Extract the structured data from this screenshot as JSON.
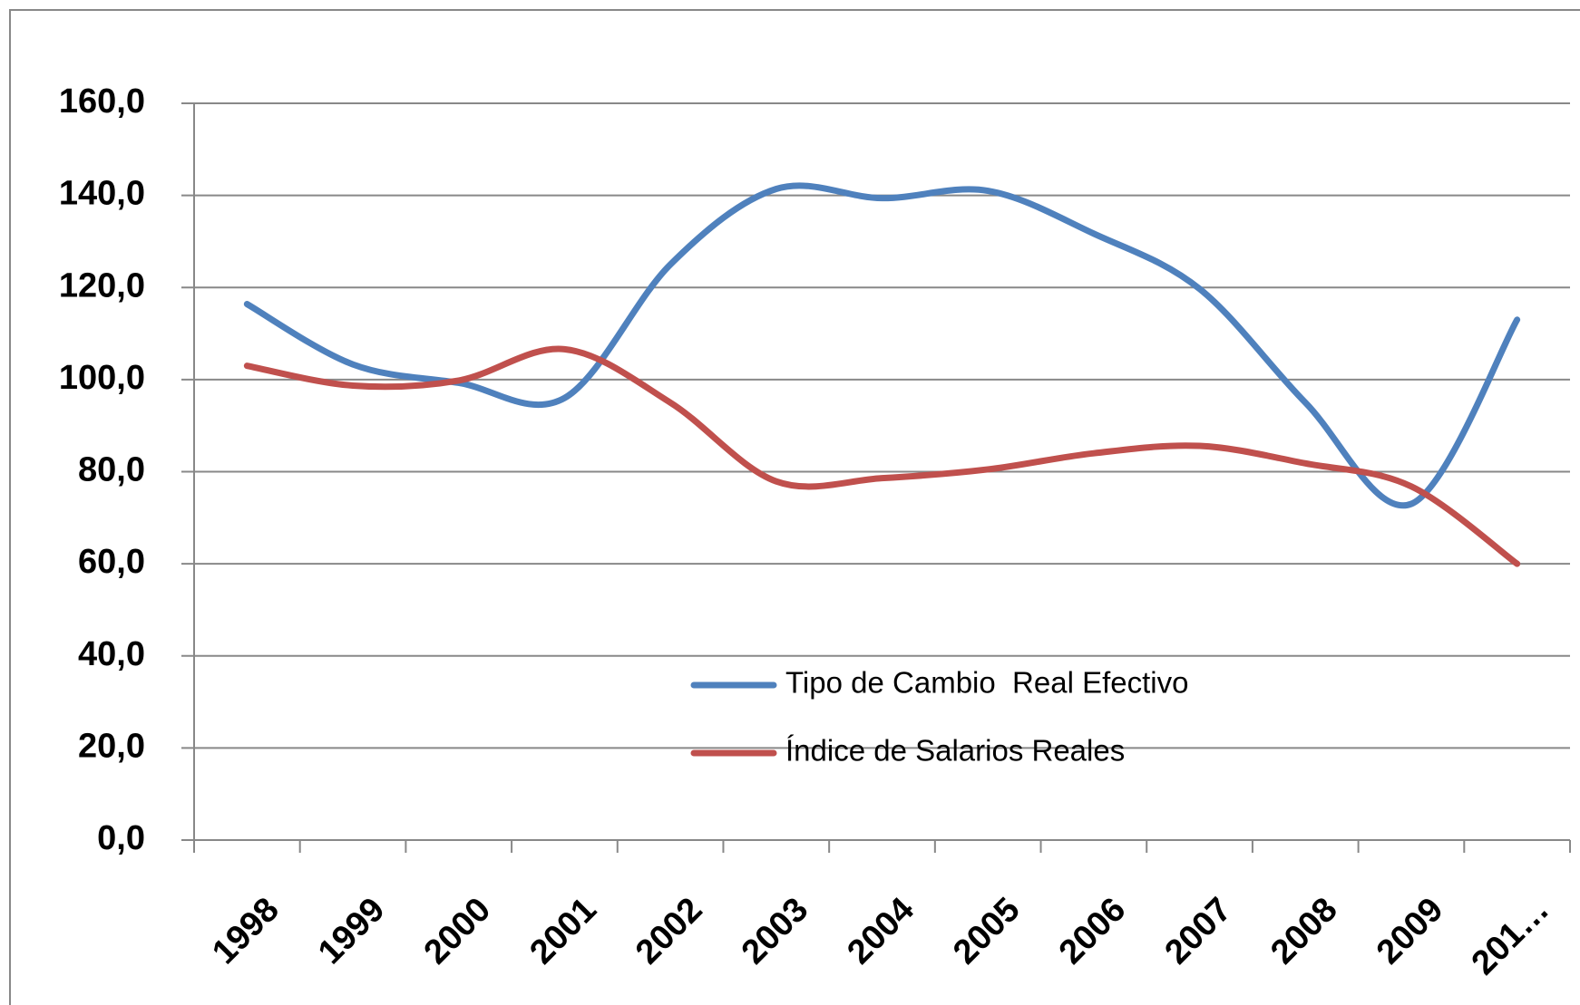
{
  "chart_data": {
    "type": "line",
    "categories": [
      "1998",
      "1999",
      "2000",
      "2001",
      "2002",
      "2003",
      "2004",
      "2005",
      "2006",
      "2007",
      "2008",
      "2009",
      "201…"
    ],
    "series": [
      {
        "name": "Tipo de Cambio  Real Efectivo",
        "color": "#4f81bd",
        "values": [
          116.4,
          103.3,
          99.3,
          96,
          125,
          141.4,
          139.4,
          141,
          131.7,
          119.7,
          95,
          73,
          113
        ]
      },
      {
        "name": "Índice de Salarios Reales",
        "color": "#c0504d",
        "values": [
          103,
          98.7,
          99.8,
          106.6,
          95,
          77.9,
          78.6,
          80.5,
          84,
          85.6,
          81.8,
          76.8,
          60
        ]
      }
    ],
    "ylim": [
      0,
      160
    ],
    "yticks": [
      {
        "value": 0,
        "label": "0,0"
      },
      {
        "value": 20,
        "label": "20,0"
      },
      {
        "value": 40,
        "label": "40,0"
      },
      {
        "value": 60,
        "label": "60,0"
      },
      {
        "value": 80,
        "label": "80,0"
      },
      {
        "value": 100,
        "label": "100,0"
      },
      {
        "value": 120,
        "label": "120,0"
      },
      {
        "value": 140,
        "label": "140,0"
      },
      {
        "value": 160,
        "label": "160,0"
      }
    ],
    "grid": true
  }
}
